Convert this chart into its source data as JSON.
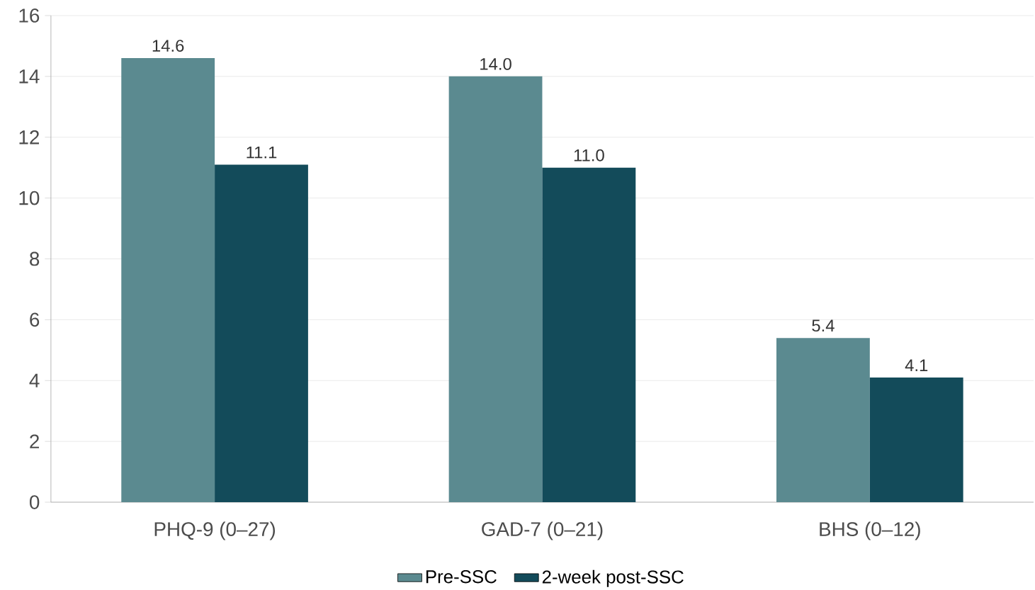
{
  "chart_data": {
    "type": "bar",
    "categories": [
      "PHQ-9 (0–27)",
      "GAD-7 (0–21)",
      "BHS (0–12)"
    ],
    "series": [
      {
        "name": "Pre-SSC",
        "color": "#5b8a90",
        "values": [
          14.6,
          14.0,
          5.4
        ],
        "value_labels": [
          "14.6",
          "14.0",
          "5.4"
        ]
      },
      {
        "name": "2-week post-SSC",
        "color": "#134b5a",
        "values": [
          11.1,
          11.0,
          4.1
        ],
        "value_labels": [
          "11.1",
          "11.0",
          "4.1"
        ]
      }
    ],
    "ylim": [
      0,
      16
    ],
    "yticks": [
      0,
      2,
      4,
      6,
      8,
      10,
      12,
      14,
      16
    ],
    "grid": "y",
    "legend": "bottom"
  }
}
